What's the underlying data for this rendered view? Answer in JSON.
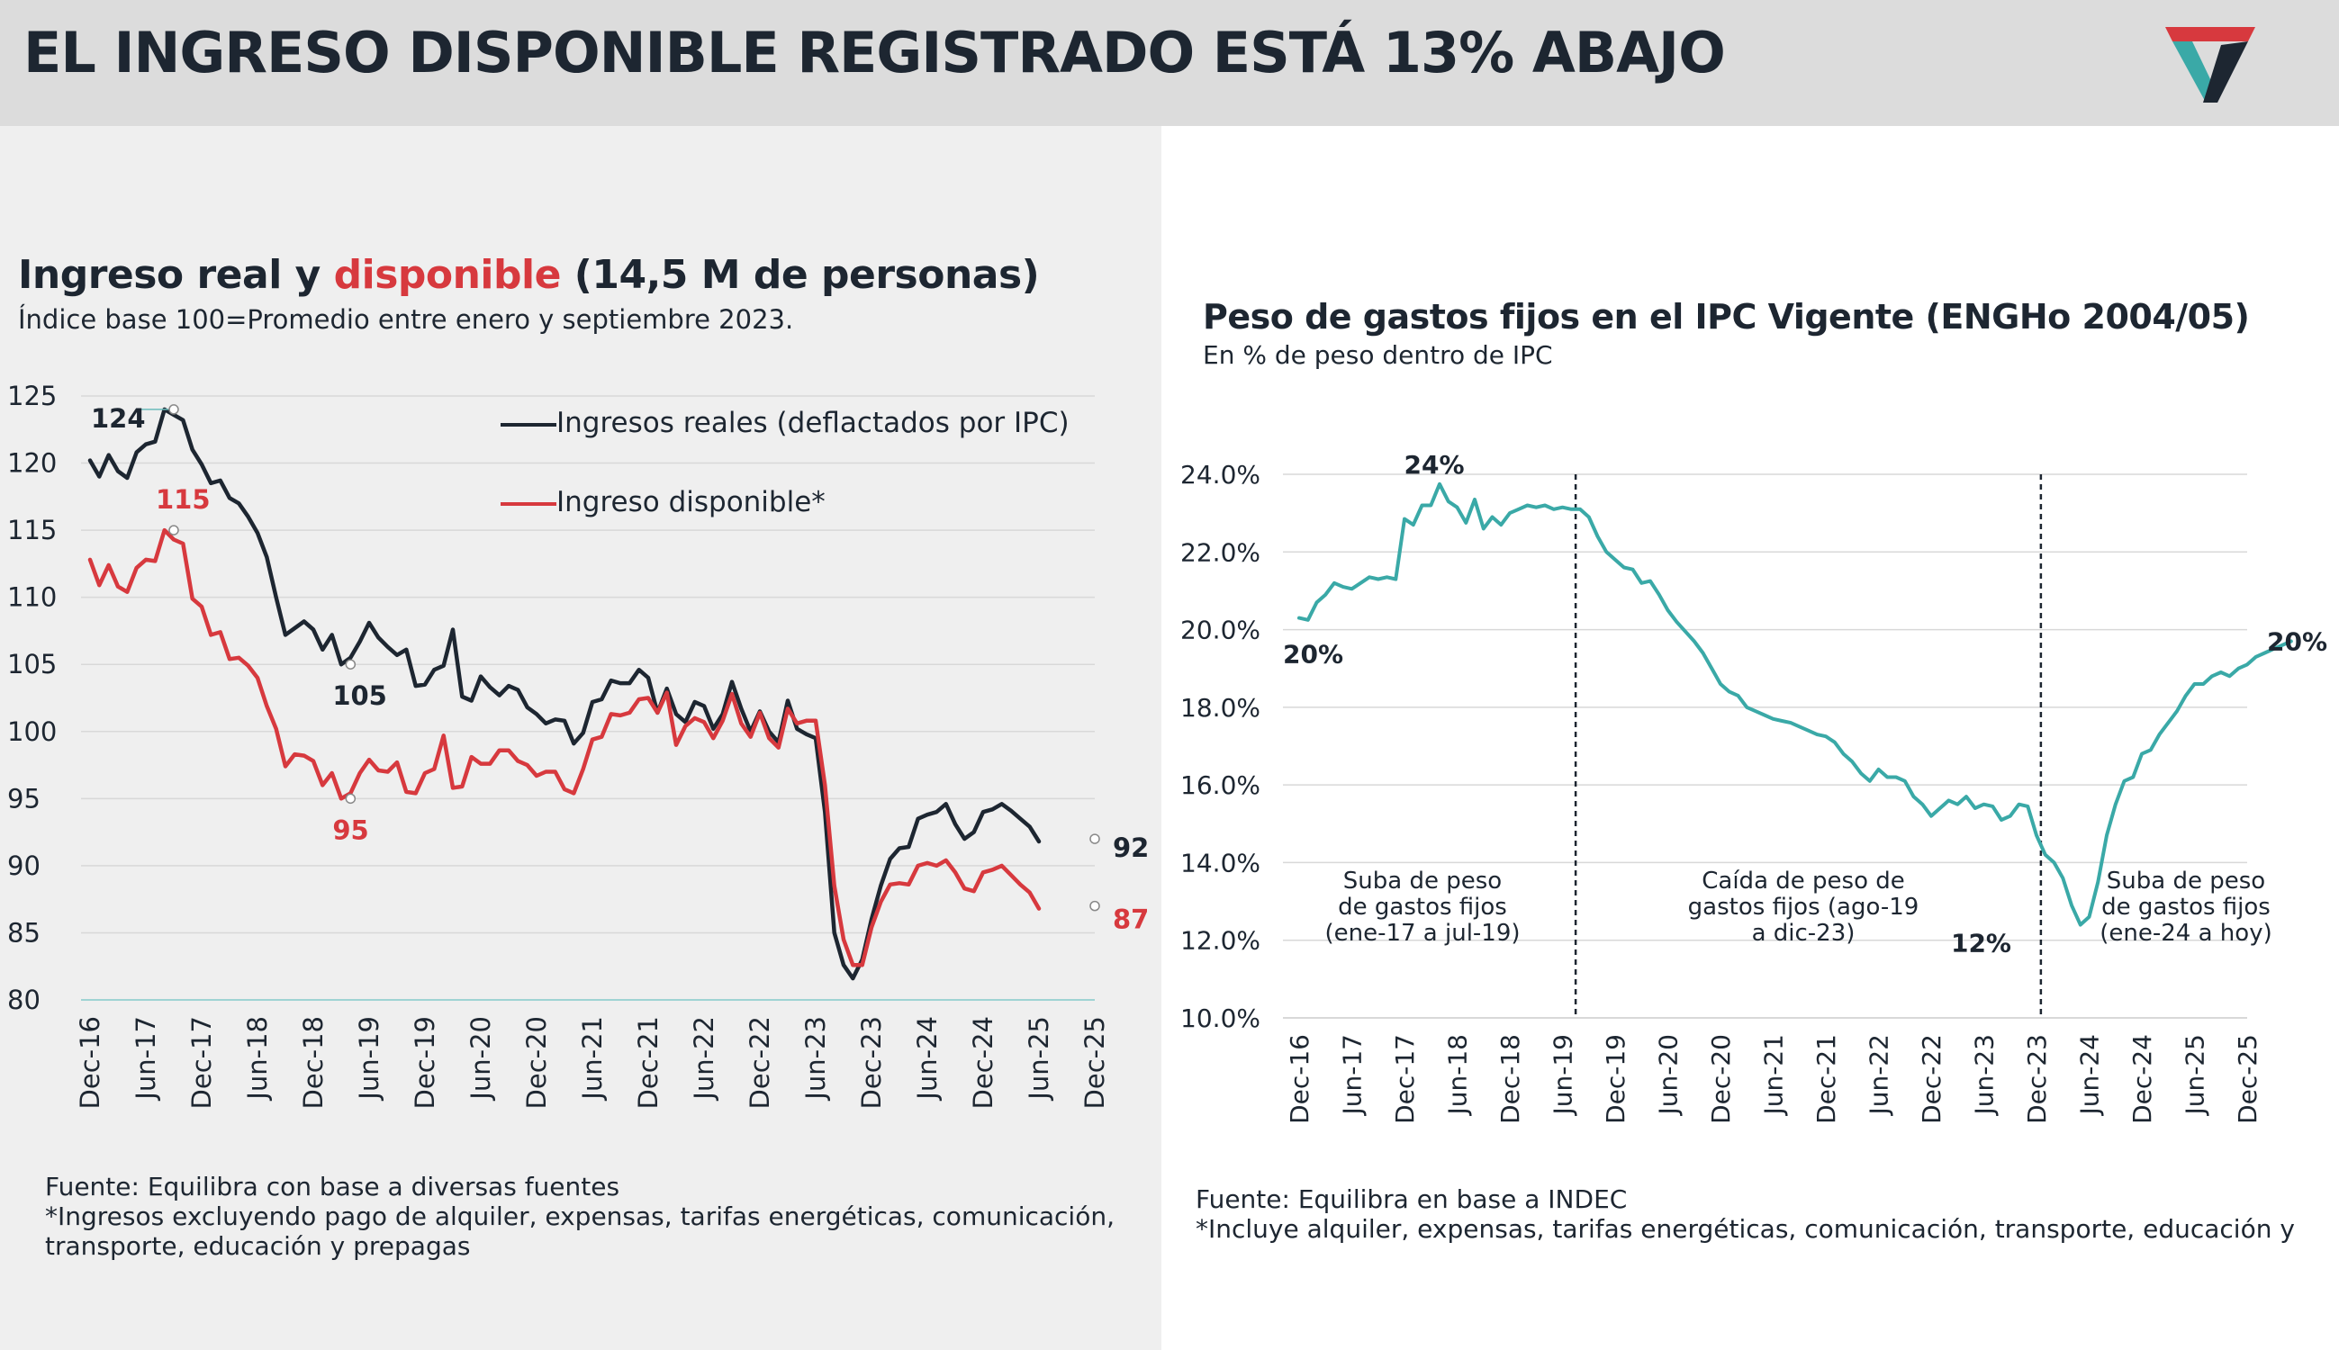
{
  "header": {
    "title": "EL INGRESO DISPONIBLE REGISTRADO ESTÁ 13% ABAJO",
    "logo_icon": "equilibra-logo-icon"
  },
  "left": {
    "title_part1": "Ingreso real y ",
    "title_part2": "disponible",
    "title_part3": " (14,5 M de personas)",
    "subtitle": "Índice base 100=Promedio entre enero y septiembre 2023.",
    "legend": [
      "Ingresos reales (deflactados por IPC)",
      "Ingreso disponible*"
    ],
    "notes": [
      "Fuente: Equilibra con base a diversas fuentes",
      "*Ingresos excluyendo pago de alquiler, expensas, tarifas energéticas, comunicación,",
      "transporte, educación y prepagas"
    ]
  },
  "right": {
    "title": "Peso de gastos fijos en el IPC Vigente (ENGHo 2004/05)",
    "subtitle": "En % de peso dentro de IPC",
    "notes": [
      "Fuente: Equilibra en base a INDEC",
      "*Incluye alquiler, expensas, tarifas energéticas, comunicación, transporte, educación y"
    ]
  },
  "colors": {
    "dark": "#1d2631",
    "red": "#d7393e",
    "teal": "#3aa9a7",
    "header_bg": "#dcdcdc",
    "left_bg": "#efefef"
  },
  "chart_data": [
    {
      "type": "line",
      "title": "Ingreso real y disponible (14,5 M de personas)",
      "ylim": [
        80,
        125
      ],
      "yticks": [
        "125",
        "120",
        "115",
        "110",
        "105",
        "100",
        "95",
        "90",
        "85",
        "80"
      ],
      "xticks": [
        "Dec-16",
        "Jun-17",
        "Dec-17",
        "Jun-18",
        "Dec-18",
        "Jun-19",
        "Dec-19",
        "Jun-20",
        "Dec-20",
        "Jun-21",
        "Dec-21",
        "Jun-22",
        "Dec-22",
        "Jun-23",
        "Dec-23",
        "Jun-24",
        "Dec-24",
        "Jun-25",
        "Dec-25"
      ],
      "x_start": "Dec-16",
      "x_frequency": "monthly",
      "grid": true,
      "legend_position": "top-right",
      "series": [
        {
          "name": "Ingresos reales (deflactados por IPC)",
          "color": "#1d2631",
          "values": [
            120.2,
            119.0,
            120.6,
            119.4,
            118.9,
            120.8,
            121.4,
            121.6,
            124.0,
            123.6,
            123.2,
            121.0,
            119.9,
            118.5,
            118.7,
            117.4,
            117.0,
            116.0,
            114.8,
            113.0,
            110.0,
            107.2,
            107.7,
            108.2,
            107.6,
            106.1,
            107.2,
            105.0,
            105.5,
            106.7,
            108.1,
            107.0,
            106.3,
            105.7,
            106.1,
            103.4,
            103.5,
            104.6,
            104.9,
            107.6,
            102.6,
            102.3,
            104.1,
            103.3,
            102.7,
            103.4,
            103.1,
            101.8,
            101.3,
            100.6,
            100.9,
            100.8,
            99.1,
            99.9,
            102.2,
            102.4,
            103.8,
            103.6,
            103.6,
            104.6,
            104.0,
            101.4,
            103.2,
            101.3,
            100.7,
            102.2,
            101.9,
            100.2,
            101.3,
            103.7,
            101.7,
            100.0,
            101.5,
            100.0,
            99.2,
            102.3,
            100.2,
            99.8,
            99.5,
            94.0,
            85.0,
            82.6,
            81.6,
            83.0,
            86.0,
            88.5,
            90.5,
            91.3,
            91.4,
            93.5,
            93.8,
            94.0,
            94.6,
            93.1,
            92.0,
            92.5,
            94.0,
            94.2,
            94.6,
            94.1,
            93.5,
            92.9,
            91.8
          ]
        },
        {
          "name": "Ingreso disponible*",
          "color": "#d7393e",
          "values": [
            112.8,
            110.9,
            112.4,
            110.8,
            110.4,
            112.2,
            112.8,
            112.7,
            115.0,
            114.3,
            114.0,
            109.9,
            109.3,
            107.2,
            107.4,
            105.4,
            105.5,
            104.9,
            104.0,
            101.9,
            100.2,
            97.4,
            98.3,
            98.2,
            97.8,
            96.0,
            96.9,
            95.0,
            95.4,
            96.9,
            97.9,
            97.1,
            97.0,
            97.7,
            95.5,
            95.4,
            96.9,
            97.2,
            99.7,
            95.8,
            95.9,
            98.1,
            97.6,
            97.6,
            98.6,
            98.6,
            97.8,
            97.5,
            96.7,
            97.0,
            97.0,
            95.7,
            95.4,
            97.2,
            99.4,
            99.6,
            101.3,
            101.2,
            101.4,
            102.4,
            102.5,
            101.4,
            102.9,
            99.0,
            100.4,
            101.0,
            100.7,
            99.5,
            100.8,
            102.8,
            100.6,
            99.6,
            101.4,
            99.5,
            98.8,
            101.7,
            100.6,
            100.8,
            100.8,
            96.0,
            88.5,
            84.5,
            82.6,
            82.6,
            85.4,
            87.3,
            88.6,
            88.7,
            88.6,
            90.0,
            90.2,
            90.0,
            90.4,
            89.5,
            88.3,
            88.1,
            89.5,
            89.7,
            90.0,
            89.3,
            88.6,
            88.0,
            86.8
          ]
        }
      ],
      "annotations": [
        {
          "label": "124",
          "x": "Sep-17",
          "y": 124,
          "series": "Ingresos reales (deflactados por IPC)"
        },
        {
          "label": "115",
          "x": "Sep-17",
          "y": 115,
          "series": "Ingreso disponible*"
        },
        {
          "label": "105",
          "x": "Apr-19",
          "y": 105,
          "series": "Ingresos reales (deflactados por IPC)"
        },
        {
          "label": "95",
          "x": "Apr-19",
          "y": 95,
          "series": "Ingreso disponible*"
        },
        {
          "label": "92",
          "x": "Dec-25",
          "y": 92,
          "series": "Ingresos reales (deflactados por IPC)"
        },
        {
          "label": "87",
          "x": "Dec-25",
          "y": 87,
          "series": "Ingreso disponible*"
        }
      ]
    },
    {
      "type": "line",
      "title": "Peso de gastos fijos en el IPC Vigente (ENGHo 2004/05)",
      "ylim": [
        10,
        24
      ],
      "yticks": [
        "24.0%",
        "22.0%",
        "20.0%",
        "18.0%",
        "16.0%",
        "14.0%",
        "12.0%",
        "10.0%"
      ],
      "xticks": [
        "Dec-16",
        "Jun-17",
        "Dec-17",
        "Jun-18",
        "Dec-18",
        "Jun-19",
        "Dec-19",
        "Jun-20",
        "Dec-20",
        "Jun-21",
        "Dec-21",
        "Jun-22",
        "Dec-22",
        "Jun-23",
        "Dec-23",
        "Jun-24",
        "Dec-24",
        "Jun-25",
        "Dec-25"
      ],
      "x_start": "Dec-16",
      "x_frequency": "monthly",
      "grid": true,
      "series": [
        {
          "color": "#3aa9a7",
          "values": [
            20.3,
            20.25,
            20.7,
            20.9,
            21.2,
            21.1,
            21.05,
            21.2,
            21.35,
            21.3,
            21.35,
            21.3,
            22.85,
            22.7,
            23.2,
            23.2,
            23.75,
            23.3,
            23.15,
            22.75,
            23.35,
            22.6,
            22.9,
            22.7,
            23.0,
            23.1,
            23.2,
            23.15,
            23.2,
            23.1,
            23.15,
            23.1,
            23.1,
            22.9,
            22.4,
            22.0,
            21.8,
            21.6,
            21.55,
            21.2,
            21.25,
            20.9,
            20.5,
            20.2,
            19.95,
            19.7,
            19.4,
            19.0,
            18.6,
            18.4,
            18.3,
            18.0,
            17.9,
            17.8,
            17.7,
            17.65,
            17.6,
            17.5,
            17.4,
            17.3,
            17.25,
            17.1,
            16.8,
            16.6,
            16.3,
            16.1,
            16.4,
            16.2,
            16.2,
            16.1,
            15.7,
            15.5,
            15.2,
            15.4,
            15.6,
            15.5,
            15.7,
            15.4,
            15.5,
            15.45,
            15.1,
            15.2,
            15.5,
            15.45,
            14.7,
            14.2,
            14.0,
            13.6,
            12.9,
            12.4,
            12.6,
            13.5,
            14.7,
            15.5,
            16.1,
            16.2,
            16.8,
            16.9,
            17.3,
            17.6,
            17.9,
            18.3,
            18.6,
            18.6,
            18.8,
            18.9,
            18.8,
            19.0,
            19.1,
            19.3,
            19.4,
            19.5,
            19.6,
            19.7
          ]
        }
      ],
      "periods": [
        "Suba de peso de gastos fijos (ene-17 a jul-19)",
        "Caída de peso de gastos fijos (ago-19 a dic-23)",
        "Suba de peso de gastos fijos (ene-24 a hoy)"
      ],
      "period_labels": [
        [
          "Suba de peso",
          "de gastos fijos",
          "(ene-17 a jul-19)"
        ],
        [
          "Caída de peso de",
          "gastos fijos (ago-19",
          "a dic-23)"
        ],
        [
          "Suba de peso",
          "de gastos fijos",
          "(ene-24 a hoy)"
        ]
      ],
      "dividers": [
        "Jul-19",
        "Dec-23"
      ],
      "annotations": [
        {
          "label": "24%",
          "x": "Feb-18",
          "y": 23.75
        },
        {
          "label": "20%",
          "x": "Dec-16",
          "y": 20.3
        },
        {
          "label": "12%",
          "x": "Dec-23",
          "y": 12.4
        },
        {
          "label": "20%",
          "x": "Dec-25",
          "y": 19.7
        }
      ]
    }
  ]
}
